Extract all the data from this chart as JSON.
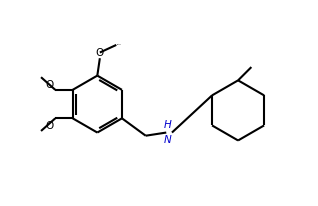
{
  "background_color": "#ffffff",
  "bond_color": "#000000",
  "text_color": "#000000",
  "nh_color": "#0000cd",
  "line_width": 1.5,
  "fig_width": 3.18,
  "fig_height": 2.07,
  "xlim": [
    0,
    10
  ],
  "ylim": [
    0,
    6.5
  ]
}
